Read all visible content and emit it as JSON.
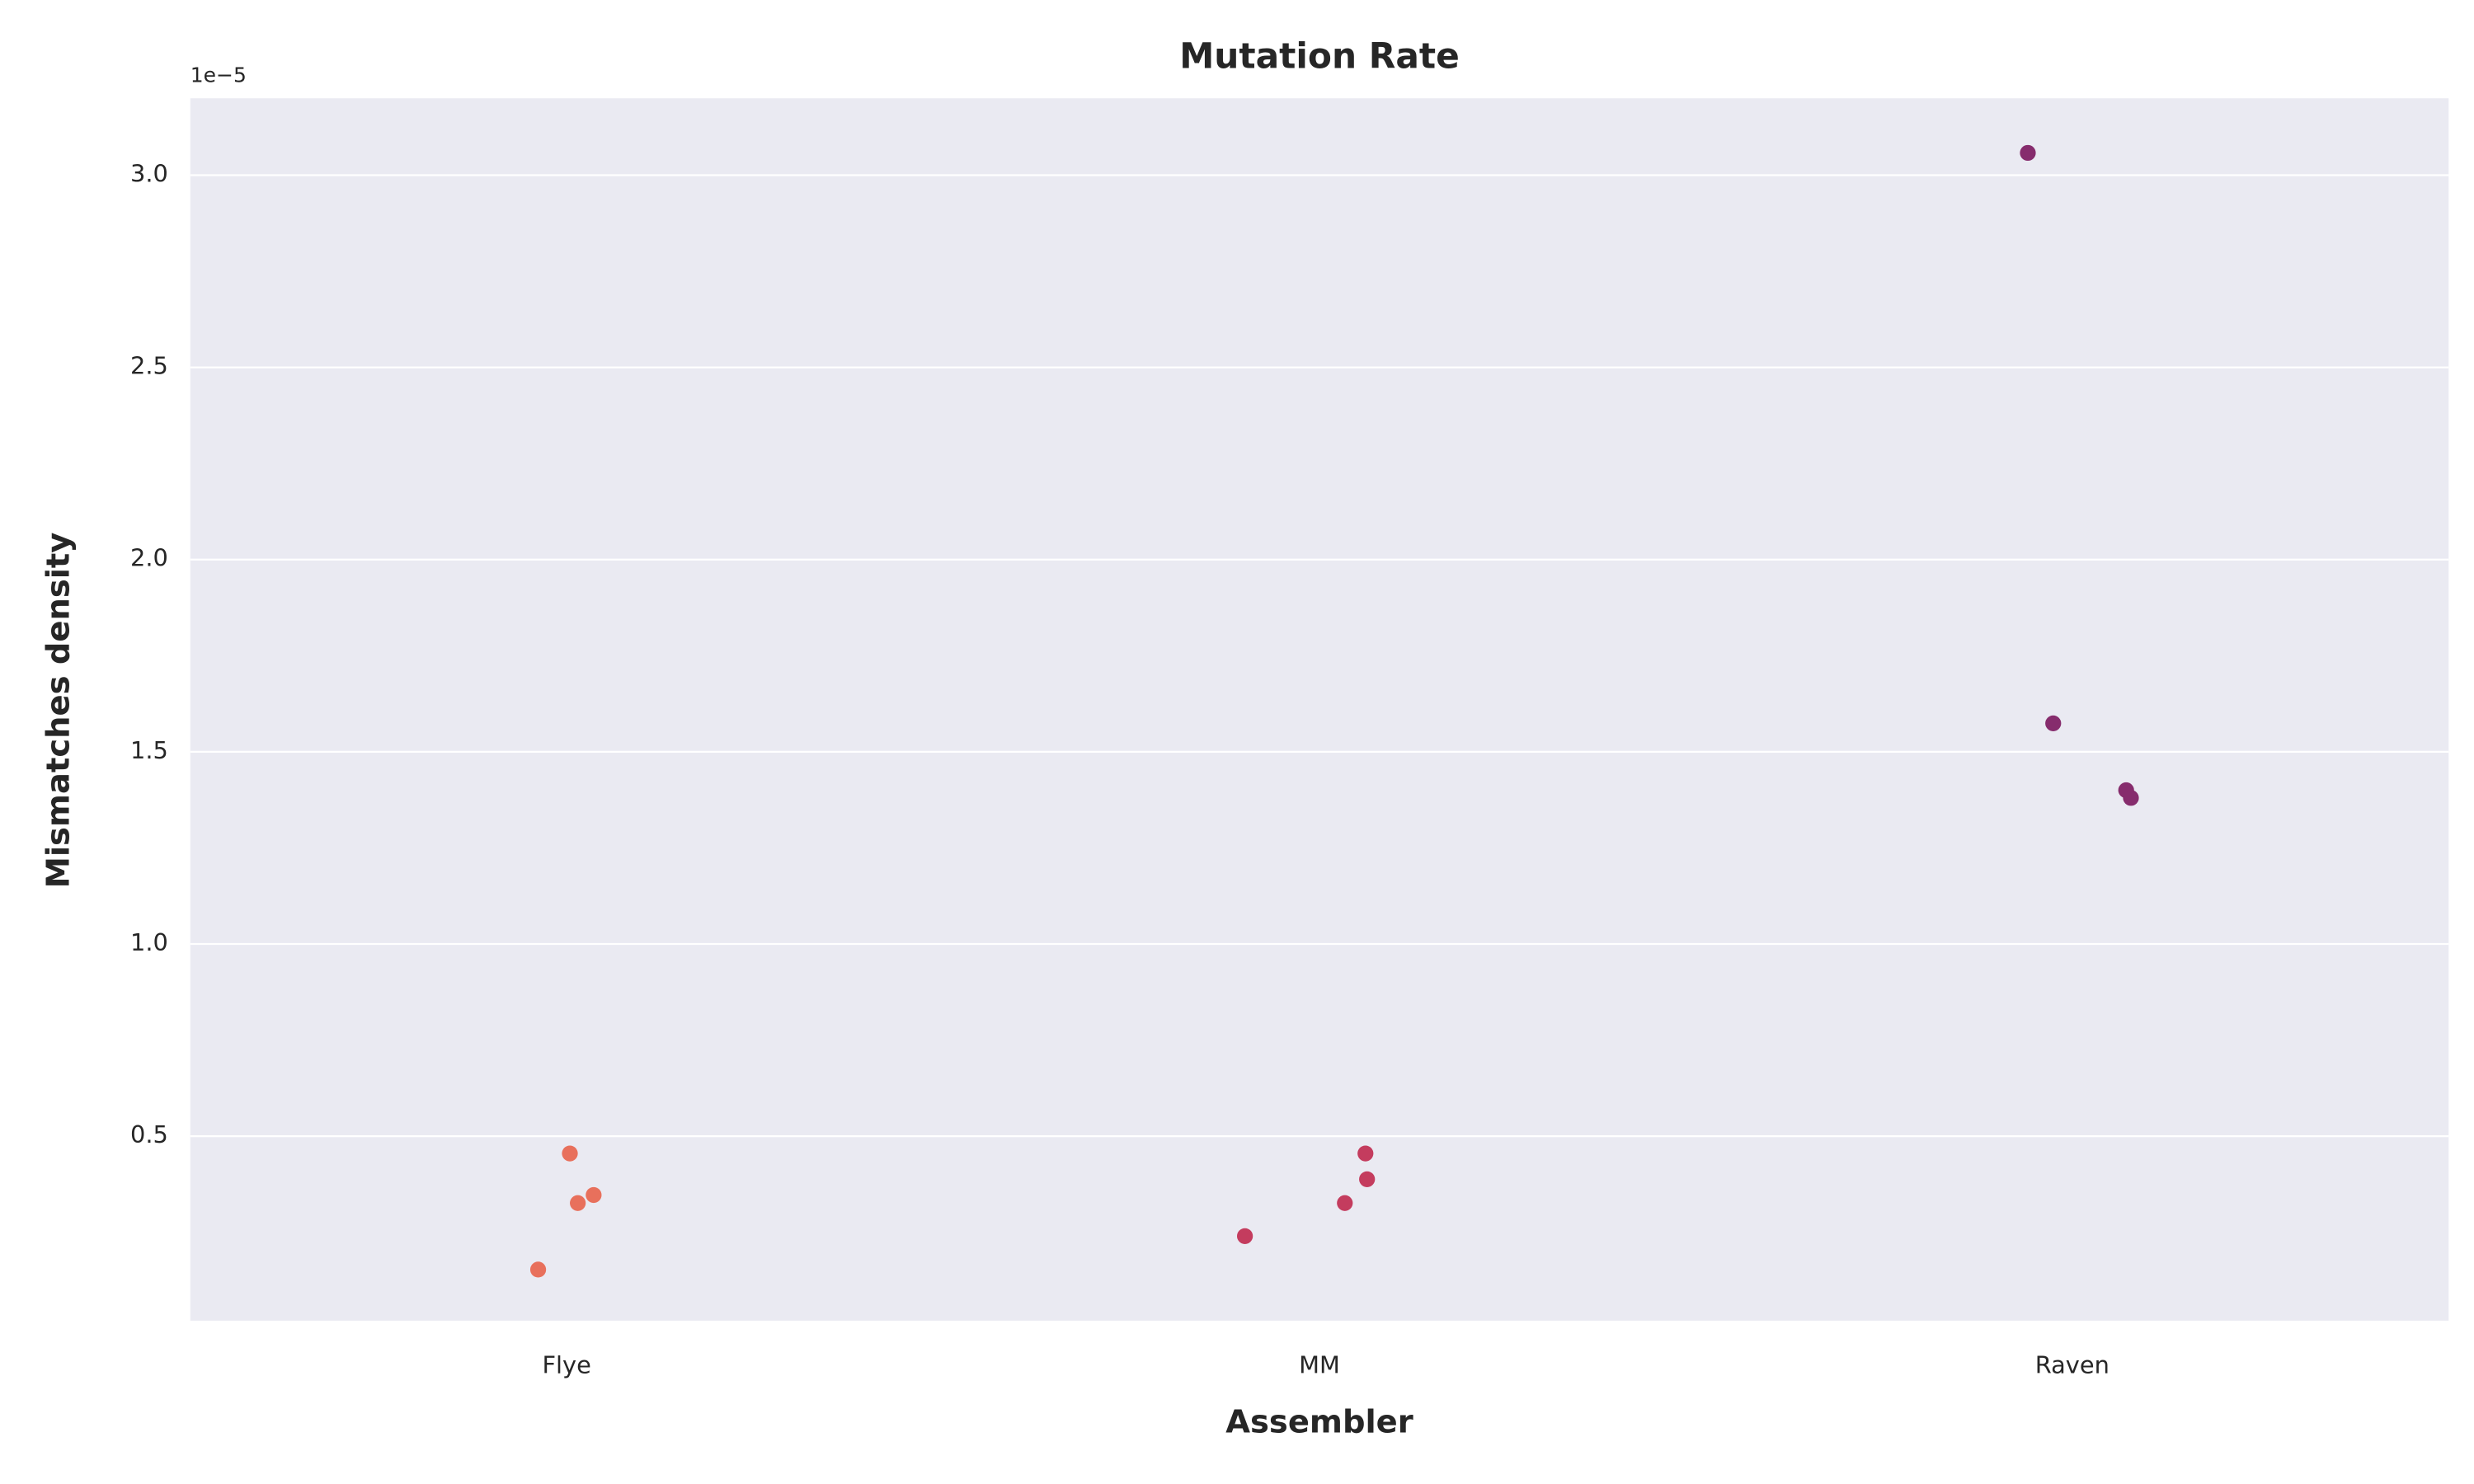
{
  "chart_data": {
    "type": "strip",
    "title": "Mutation Rate",
    "x_label": "Assembler",
    "y_label": "Mismatches density",
    "y_offset_text": "1e−5",
    "categories": [
      "Flye",
      "MM",
      "Raven"
    ],
    "colors": [
      "#e8705c",
      "#c43c5e",
      "#862c6d"
    ],
    "values": [
      [
        0.455,
        0.326,
        0.347,
        0.153
      ],
      [
        0.24,
        0.326,
        0.388,
        0.455
      ],
      [
        3.058,
        1.574,
        1.4,
        1.38
      ]
    ],
    "ylim": [
      0.02,
      3.2
    ],
    "yticks": [
      {
        "value": 0.5,
        "label": "0.5"
      },
      {
        "value": 1,
        "label": "1.0"
      },
      {
        "value": 1.5,
        "label": "1.5"
      },
      {
        "value": 2,
        "label": "2.0"
      },
      {
        "value": 2.5,
        "label": "2.5"
      },
      {
        "value": 3,
        "label": "3.0"
      }
    ],
    "grid": true
  }
}
